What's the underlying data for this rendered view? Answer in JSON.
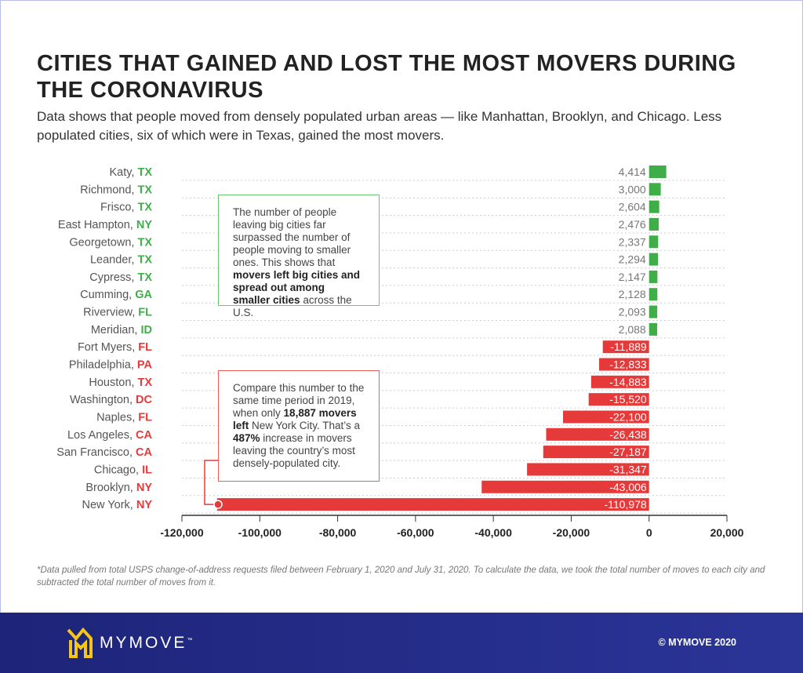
{
  "title": "CITIES THAT GAINED AND LOST THE MOST MOVERS DURING THE CORONAVIRUS",
  "subtitle": "Data shows that people moved from densely populated urban areas — like Manhattan, Brooklyn, and Chicago. Less populated cities, six of which were in Texas, gained the most movers.",
  "notes": {
    "green": {
      "p1": "The number of people leaving big cities far surpassed the number of people moving to smaller ones. This shows that ",
      "b1": "movers left big cities and spread out among smaller cities",
      "p2": " across the U.S."
    },
    "red": {
      "p1": "Compare this number to the same time period in 2019, when only ",
      "b1": "18,887 movers left",
      "p2": " New York City. That’s a ",
      "b2": "487%",
      "p3": " increase in movers leaving the country’s most densely-populated city."
    }
  },
  "footnote": "*Data pulled from total USPS change-of-address requests filed between February 1, 2020 and July 31, 2020. To calculate the data, we took the total number of moves to each city and subtracted the total number of moves from it.",
  "footer": {
    "logo": "MYMOVE",
    "tm": "™",
    "copyright": "© MYMOVE 2020"
  },
  "colors": {
    "gain": "#3fae49",
    "loss": "#e63a3a",
    "footer": "#222a85",
    "logo": "#f5c518"
  },
  "chart_data": {
    "type": "bar",
    "orientation": "horizontal",
    "categories": [
      {
        "city": "Katy, ",
        "state": "TX"
      },
      {
        "city": "Richmond, ",
        "state": "TX"
      },
      {
        "city": "Frisco, ",
        "state": "TX"
      },
      {
        "city": "East Hampton, ",
        "state": "NY"
      },
      {
        "city": "Georgetown, ",
        "state": "TX"
      },
      {
        "city": "Leander, ",
        "state": "TX"
      },
      {
        "city": "Cypress, ",
        "state": "TX"
      },
      {
        "city": "Cumming, ",
        "state": "GA"
      },
      {
        "city": "Riverview, ",
        "state": "FL"
      },
      {
        "city": "Meridian, ",
        "state": "ID"
      },
      {
        "city": "Fort Myers, ",
        "state": "FL"
      },
      {
        "city": "Philadelphia, ",
        "state": "PA"
      },
      {
        "city": "Houston, ",
        "state": "TX"
      },
      {
        "city": "Washington, ",
        "state": "DC"
      },
      {
        "city": "Naples, ",
        "state": "FL"
      },
      {
        "city": "Los Angeles, ",
        "state": "CA"
      },
      {
        "city": "San Francisco, ",
        "state": "CA"
      },
      {
        "city": "Chicago, ",
        "state": "IL"
      },
      {
        "city": "Brooklyn, ",
        "state": "NY"
      },
      {
        "city": "New York, ",
        "state": "NY"
      }
    ],
    "values": [
      4414,
      3000,
      2604,
      2476,
      2337,
      2294,
      2147,
      2128,
      2093,
      2088,
      -11889,
      -12833,
      -14883,
      -15520,
      -22100,
      -26438,
      -27187,
      -31347,
      -43006,
      -110978
    ],
    "value_labels": [
      "4,414",
      "3,000",
      "2,604",
      "2,476",
      "2,337",
      "2,294",
      "2,147",
      "2,128",
      "2,093",
      "2,088",
      "-11,889",
      "-12,833",
      "-14,883",
      "-15,520",
      "-22,100",
      "-26,438",
      "-27,187",
      "-31,347",
      "-43,006",
      "-110,978"
    ],
    "xlim": [
      -120000,
      20000
    ],
    "xticks": [
      -120000,
      -100000,
      -80000,
      -60000,
      -40000,
      -20000,
      0,
      20000
    ],
    "xtick_labels": [
      "-120,000",
      "-100,000",
      "-80,000",
      "-60,000",
      "-40,000",
      "-20,000",
      "0",
      "20,000"
    ],
    "grid": "dotted horizontal"
  }
}
